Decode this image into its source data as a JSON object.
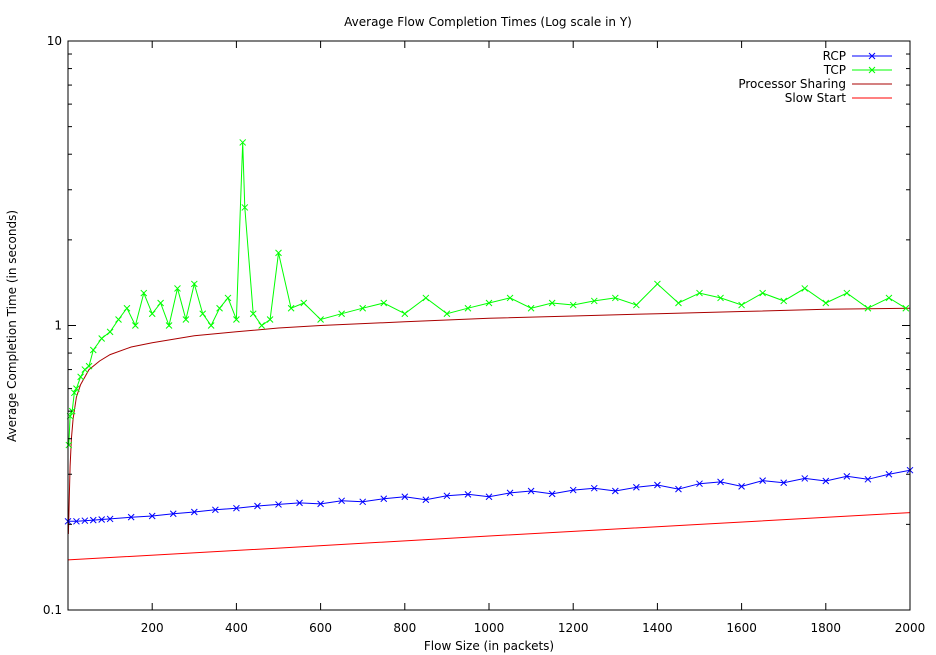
{
  "chart_data": {
    "type": "line",
    "title": "Average Flow Completion Times (Log scale in Y)",
    "xlabel": "Flow Size (in packets)",
    "ylabel": "Average Completion Time (in seconds)",
    "xlim": [
      0,
      2000
    ],
    "ylim": [
      0.1,
      10
    ],
    "yscale": "log",
    "x_ticks": [
      200,
      400,
      600,
      800,
      1000,
      1200,
      1400,
      1600,
      1800,
      2000
    ],
    "x_tick_labels": [
      "200",
      "400",
      "600",
      "800",
      "1000",
      "1200",
      "1400",
      "1600",
      "1800",
      "2000"
    ],
    "y_ticks": [
      0.1,
      1,
      10
    ],
    "y_tick_labels": [
      "0.1",
      "1",
      "10"
    ],
    "legend_position": "top-right",
    "series": [
      {
        "name": "RCP",
        "color": "#0000ff",
        "marker": "x",
        "x": [
          0,
          20,
          40,
          60,
          80,
          100,
          150,
          200,
          250,
          300,
          350,
          400,
          450,
          500,
          550,
          600,
          650,
          700,
          750,
          800,
          850,
          900,
          950,
          1000,
          1050,
          1100,
          1150,
          1200,
          1250,
          1300,
          1350,
          1400,
          1450,
          1500,
          1550,
          1600,
          1650,
          1700,
          1750,
          1800,
          1850,
          1900,
          1950,
          2000
        ],
        "values": [
          0.205,
          0.205,
          0.206,
          0.207,
          0.208,
          0.209,
          0.212,
          0.214,
          0.218,
          0.221,
          0.225,
          0.228,
          0.232,
          0.235,
          0.238,
          0.236,
          0.242,
          0.24,
          0.246,
          0.25,
          0.244,
          0.252,
          0.255,
          0.25,
          0.258,
          0.262,
          0.256,
          0.264,
          0.268,
          0.262,
          0.27,
          0.275,
          0.266,
          0.278,
          0.282,
          0.272,
          0.285,
          0.28,
          0.29,
          0.284,
          0.295,
          0.288,
          0.3,
          0.31
        ]
      },
      {
        "name": "TCP",
        "color": "#00ff00",
        "marker": "x",
        "x": [
          2,
          5,
          10,
          15,
          20,
          30,
          40,
          50,
          60,
          80,
          100,
          120,
          140,
          160,
          180,
          200,
          220,
          240,
          260,
          280,
          300,
          320,
          340,
          360,
          380,
          400,
          415,
          420,
          440,
          460,
          480,
          500,
          530,
          560,
          600,
          650,
          700,
          750,
          800,
          850,
          900,
          950,
          1000,
          1050,
          1100,
          1150,
          1200,
          1250,
          1300,
          1350,
          1400,
          1450,
          1500,
          1550,
          1600,
          1650,
          1700,
          1750,
          1800,
          1850,
          1900,
          1950,
          1990
        ],
        "values": [
          0.38,
          0.48,
          0.5,
          0.58,
          0.6,
          0.66,
          0.7,
          0.72,
          0.82,
          0.9,
          0.95,
          1.05,
          1.15,
          1.0,
          1.3,
          1.1,
          1.2,
          1.0,
          1.35,
          1.05,
          1.4,
          1.1,
          1.0,
          1.15,
          1.25,
          1.05,
          4.4,
          2.6,
          1.1,
          1.0,
          1.05,
          1.8,
          1.15,
          1.2,
          1.05,
          1.1,
          1.15,
          1.2,
          1.1,
          1.25,
          1.1,
          1.15,
          1.2,
          1.25,
          1.15,
          1.2,
          1.18,
          1.22,
          1.25,
          1.18,
          1.4,
          1.2,
          1.3,
          1.25,
          1.18,
          1.3,
          1.22,
          1.35,
          1.2,
          1.3,
          1.15,
          1.25,
          1.15
        ]
      },
      {
        "name": "Processor Sharing",
        "color": "#aa0000",
        "marker": "none",
        "x": [
          1,
          2,
          3,
          5,
          8,
          12,
          20,
          30,
          50,
          75,
          100,
          150,
          200,
          300,
          400,
          500,
          600,
          800,
          1000,
          1200,
          1400,
          1600,
          1800,
          2000
        ],
        "values": [
          0.185,
          0.21,
          0.25,
          0.32,
          0.4,
          0.47,
          0.56,
          0.62,
          0.7,
          0.75,
          0.79,
          0.84,
          0.87,
          0.92,
          0.95,
          0.98,
          1.0,
          1.03,
          1.06,
          1.08,
          1.1,
          1.12,
          1.14,
          1.15
        ]
      },
      {
        "name": "Slow Start",
        "color": "#ff0000",
        "marker": "none",
        "x": [
          0,
          500,
          1000,
          1500,
          2000
        ],
        "values": [
          0.15,
          0.165,
          0.182,
          0.2,
          0.22
        ]
      }
    ]
  }
}
